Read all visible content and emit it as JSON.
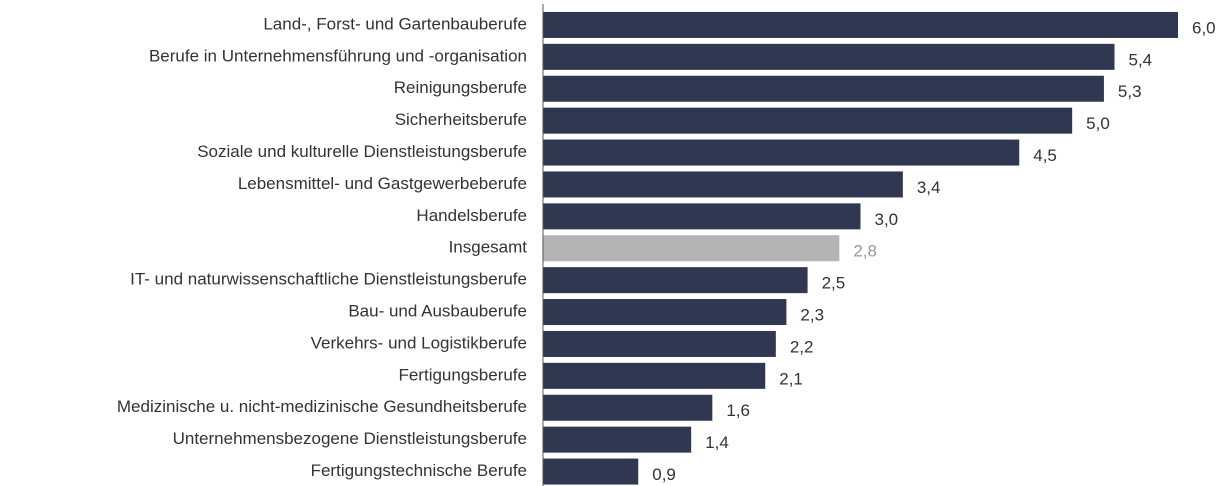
{
  "chart_data": {
    "type": "barh",
    "categories": [
      "Land-, Forst- und Gartenbauberufe",
      "Berufe in Unternehmensführung und -organisation",
      "Reinigungsberufe",
      "Sicherheitsberufe",
      "Soziale und kulturelle Dienstleistungsberufe",
      "Lebensmittel- und Gastgewerbeberufe",
      "Handelsberufe",
      "Insgesamt",
      "IT- und naturwissenschaftliche Dienstleistungsberufe",
      "Bau- und Ausbauberufe",
      "Verkehrs- und Logistikberufe",
      "Fertigungsberufe",
      "Medizinische u. nicht-medizinische Gesundheitsberufe",
      "Unternehmensbezogene Dienstleistungsberufe",
      "Fertigungstechnische Berufe"
    ],
    "values": [
      6.0,
      5.4,
      5.3,
      5.0,
      4.5,
      3.4,
      3.0,
      2.8,
      2.5,
      2.3,
      2.2,
      2.1,
      1.6,
      1.4,
      0.9
    ],
    "value_labels": [
      "6,0",
      "5,4",
      "5,3",
      "5,0",
      "4,5",
      "3,4",
      "3,0",
      "2,8",
      "2,5",
      "2,3",
      "2,2",
      "2,1",
      "1,6",
      "1,4",
      "0,9"
    ],
    "colors": [
      "#2f3850",
      "#2f3850",
      "#2f3850",
      "#2f3850",
      "#2f3850",
      "#2f3850",
      "#2f3850",
      "#b4b4b4",
      "#2f3850",
      "#2f3850",
      "#2f3850",
      "#2f3850",
      "#2f3850",
      "#2f3850",
      "#2f3850"
    ],
    "value_label_colors": [
      "#333333",
      "#333333",
      "#333333",
      "#333333",
      "#333333",
      "#333333",
      "#333333",
      "#999999",
      "#333333",
      "#333333",
      "#333333",
      "#333333",
      "#333333",
      "#333333",
      "#333333"
    ]
  }
}
